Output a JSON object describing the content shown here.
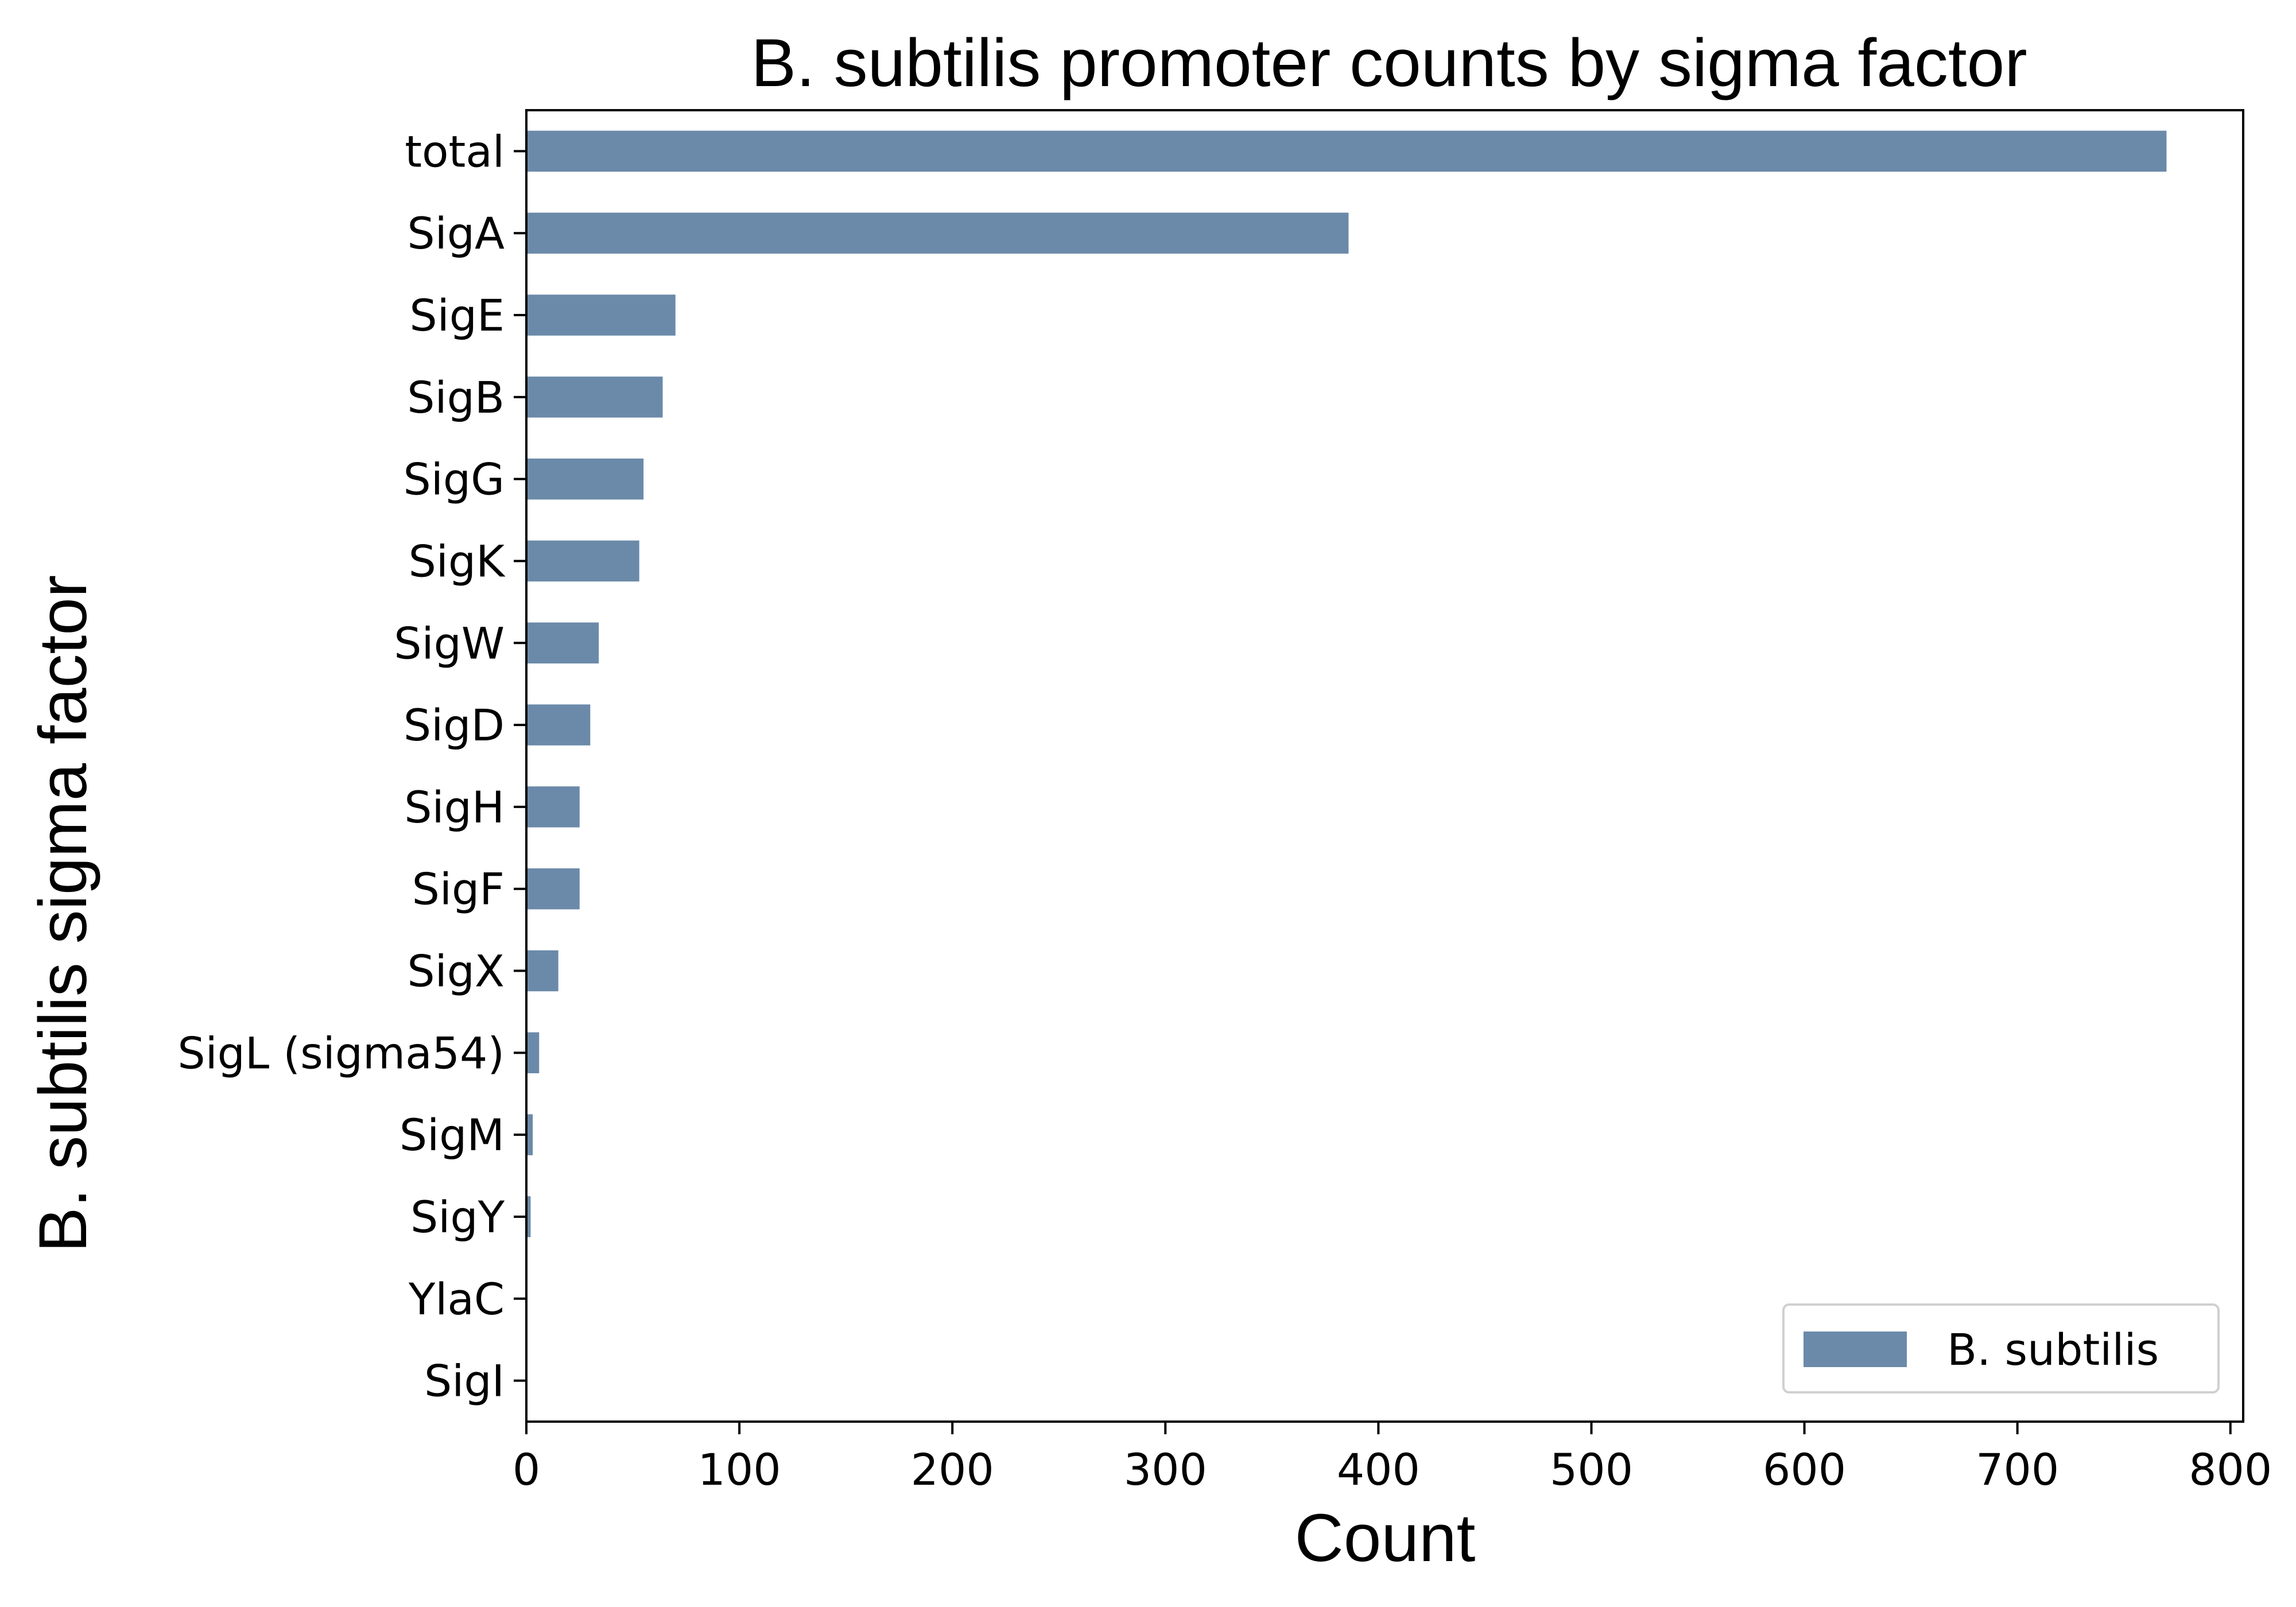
{
  "colors": {
    "bar": "#6b8aa9",
    "axis": "#000000",
    "legend_border": "#d0d0d0",
    "background": "#ffffff"
  },
  "chart_data": {
    "type": "bar",
    "orientation": "horizontal",
    "title": "B. subtilis promoter counts by sigma factor",
    "xlabel": "Count",
    "ylabel": "B. subtilis sigma factor",
    "categories": [
      "total",
      "SigA",
      "SigE",
      "SigB",
      "SigG",
      "SigK",
      "SigW",
      "SigD",
      "SigH",
      "SigF",
      "SigX",
      "SigL (sigma54)",
      "SigM",
      "SigY",
      "YlaC",
      "SigI"
    ],
    "series": [
      {
        "name": "B. subtilis",
        "values": [
          770,
          386,
          70,
          64,
          55,
          53,
          34,
          30,
          25,
          25,
          15,
          6,
          3,
          2,
          0,
          0
        ]
      }
    ],
    "xlim": [
      0,
      806
    ],
    "xticks": [
      0,
      100,
      200,
      300,
      400,
      500,
      600,
      700,
      800
    ],
    "grid": false,
    "legend": {
      "position": "bottom-right",
      "entries": [
        "B. subtilis"
      ]
    }
  }
}
